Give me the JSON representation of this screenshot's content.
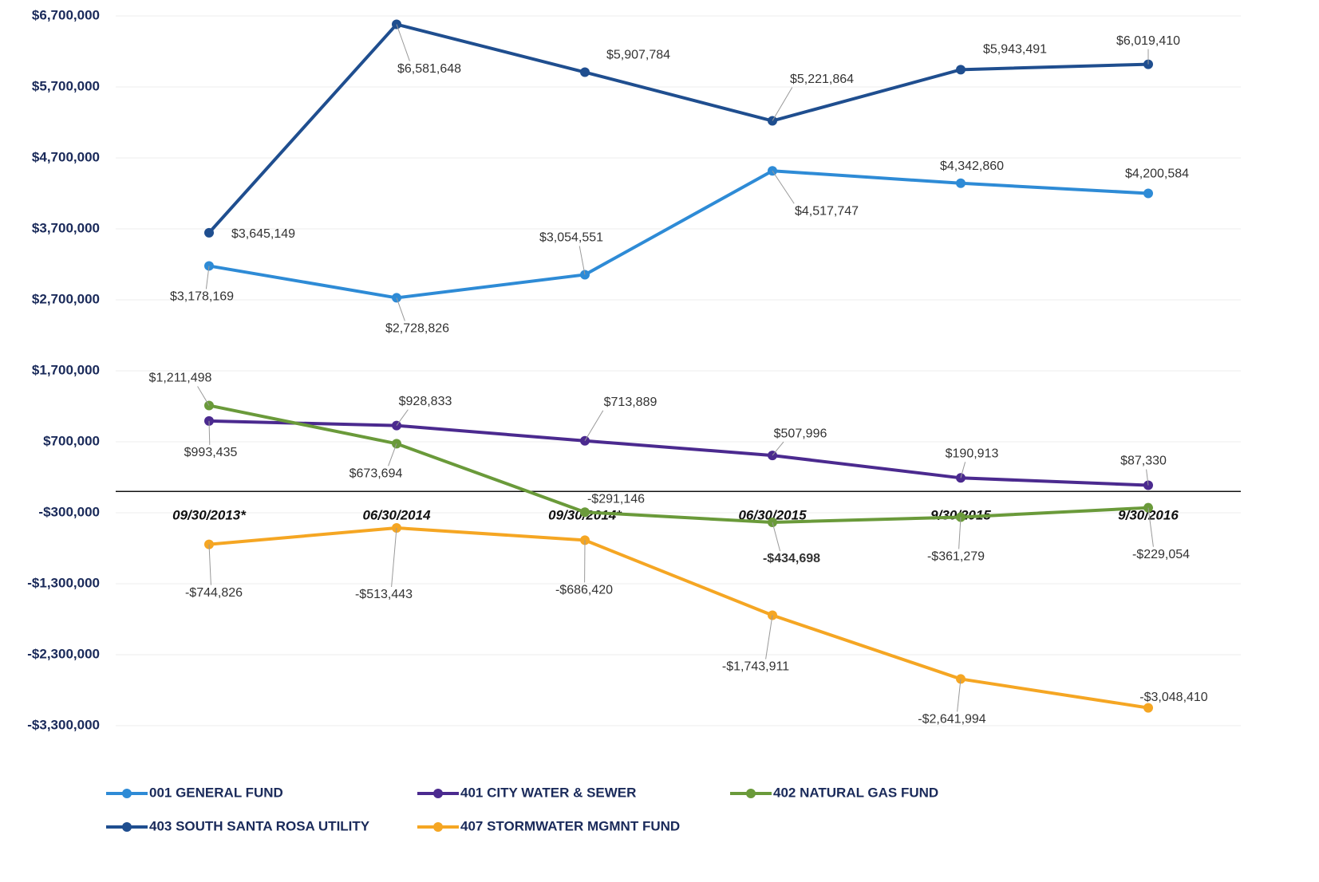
{
  "chart_data": {
    "type": "line",
    "categories": [
      "09/30/2013*",
      "06/30/2014",
      "09/30/2014*",
      "06/30/2015",
      "9/30/2015",
      "9/30/2016"
    ],
    "ylim": [
      -3300000,
      6700000
    ],
    "yticks": [
      {
        "value": -3300000,
        "label": "-$3,300,000"
      },
      {
        "value": -2300000,
        "label": "-$2,300,000"
      },
      {
        "value": -1300000,
        "label": "-$1,300,000"
      },
      {
        "value": -300000,
        "label": "-$300,000"
      },
      {
        "value": 700000,
        "label": "$700,000"
      },
      {
        "value": 1700000,
        "label": "$1,700,000"
      },
      {
        "value": 2700000,
        "label": "$2,700,000"
      },
      {
        "value": 3700000,
        "label": "$3,700,000"
      },
      {
        "value": 4700000,
        "label": "$4,700,000"
      },
      {
        "value": 5700000,
        "label": "$5,700,000"
      },
      {
        "value": 6700000,
        "label": "$6,700,000"
      }
    ],
    "grid": true,
    "series": [
      {
        "name": "001 GENERAL FUND",
        "color": "#2e8bd6",
        "values": [
          3178169,
          2728826,
          3054551,
          4517747,
          4342860,
          4200584
        ],
        "value_labels": [
          "$3,178,169",
          "$2,728,826",
          "$3,054,551",
          "$4,517,747",
          "$4,342,860",
          "$4,200,584"
        ]
      },
      {
        "name": "401 CITY WATER & SEWER",
        "color": "#4b2a8f",
        "values": [
          993435,
          928833,
          713889,
          507996,
          190913,
          87330
        ],
        "value_labels": [
          "$993,435",
          "$928,833",
          "$713,889",
          "$507,996",
          "$190,913",
          "$87,330"
        ]
      },
      {
        "name": "402 NATURAL GAS FUND",
        "color": "#6a9a3a",
        "values": [
          1211498,
          673694,
          -291146,
          -434698,
          -361279,
          -229054
        ],
        "value_labels": [
          "$1,211,498",
          "$673,694",
          "-$291,146",
          "-$434,698",
          "-$361,279",
          "-$229,054"
        ]
      },
      {
        "name": "403 SOUTH SANTA ROSA UTILITY",
        "color": "#1f4e8f",
        "values": [
          3645149,
          6581648,
          5907784,
          5221864,
          5943491,
          6019410
        ],
        "value_labels": [
          "$3,645,149",
          "$6,581,648",
          "$5,907,784",
          "$5,221,864",
          "$5,943,491",
          "$6,019,410"
        ]
      },
      {
        "name": "407 STORMWATER MGMNT  FUND",
        "color": "#f5a623",
        "values": [
          -744826,
          -513443,
          -686420,
          -1743911,
          -2641994,
          -3048410
        ],
        "value_labels": [
          "-$744,826",
          "-$513,443",
          "-$686,420",
          "-$1,743,911",
          "-$2,641,994",
          "-$3,048,410"
        ]
      }
    ]
  }
}
